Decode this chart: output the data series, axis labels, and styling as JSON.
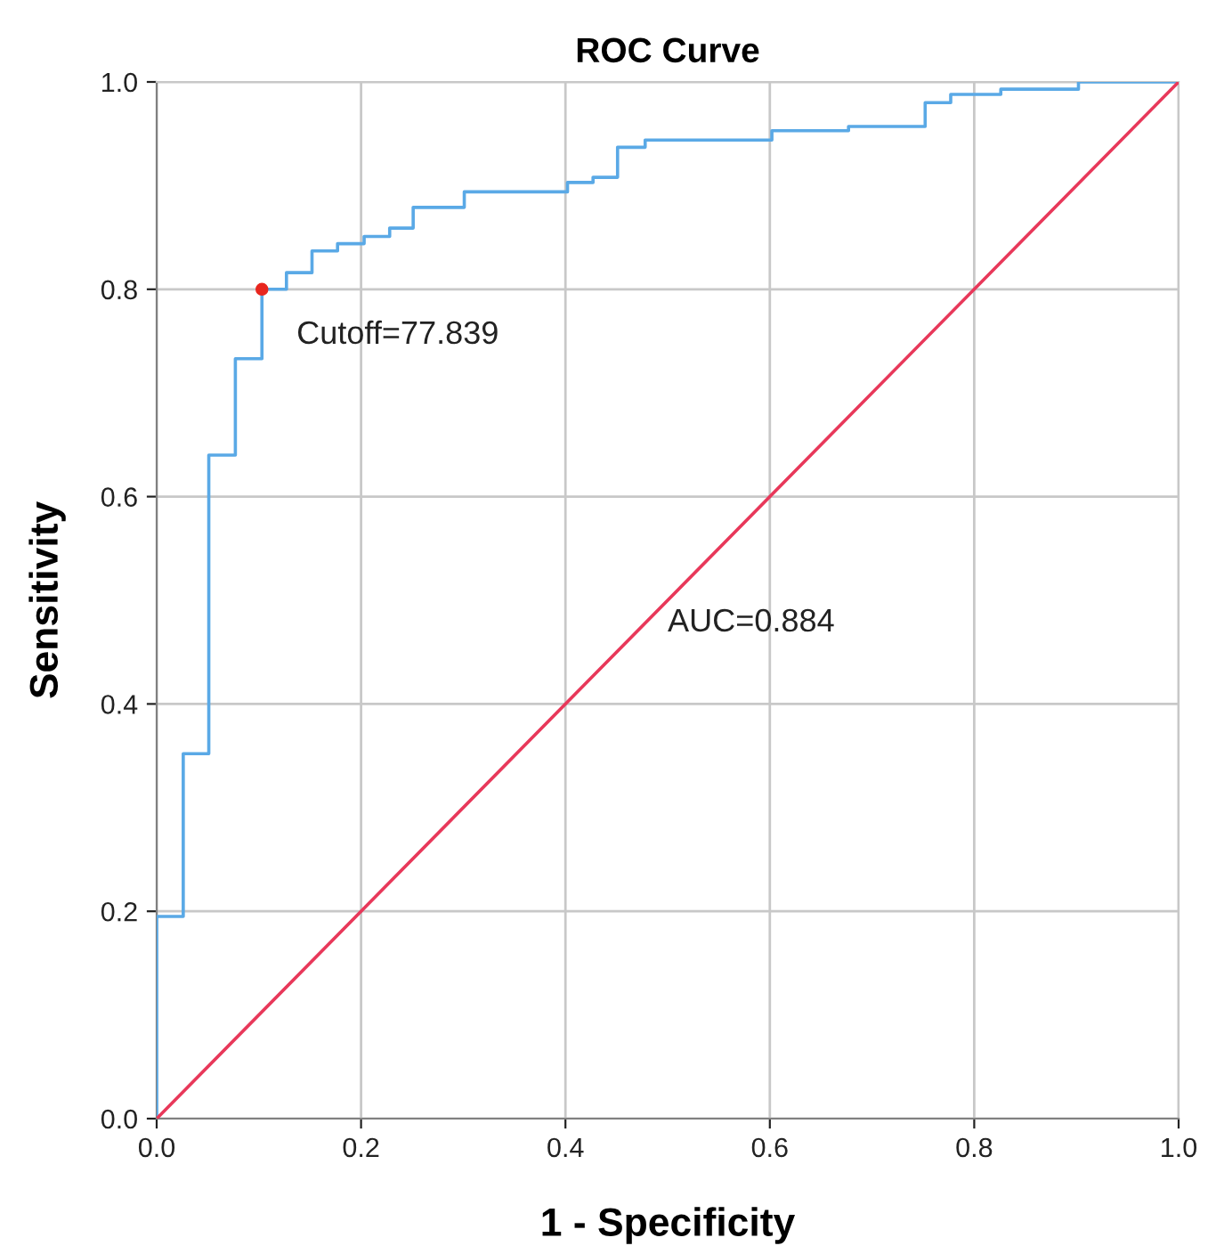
{
  "chart_data": {
    "type": "step",
    "title": "ROC Curve",
    "xlabel": "1 - Specificity",
    "ylabel": "Sensitivity",
    "xlim": [
      0,
      1
    ],
    "ylim": [
      0,
      1
    ],
    "xticks": [
      {
        "value": 0,
        "label": "0.0"
      },
      {
        "value": 0.2,
        "label": "0.2"
      },
      {
        "value": 0.4,
        "label": "0.4"
      },
      {
        "value": 0.6,
        "label": "0.6"
      },
      {
        "value": 0.8,
        "label": "0.8"
      },
      {
        "value": 1,
        "label": "1.0"
      }
    ],
    "yticks": [
      {
        "value": 0,
        "label": "0.0"
      },
      {
        "value": 0.2,
        "label": "0.2"
      },
      {
        "value": 0.4,
        "label": "0.4"
      },
      {
        "value": 0.6,
        "label": "0.6"
      },
      {
        "value": 0.8,
        "label": "0.8"
      },
      {
        "value": 1,
        "label": "1.0"
      }
    ],
    "grid": true,
    "series": [
      {
        "color": "#5aa9e6",
        "x": [
          0,
          0,
          0.026,
          0.051,
          0.077,
          0.103,
          0.127,
          0.152,
          0.177,
          0.203,
          0.228,
          0.251,
          0.301,
          0.402,
          0.427,
          0.451,
          0.478,
          0.602,
          0.677,
          0.752,
          0.777,
          0.826,
          0.902,
          1.0
        ],
        "values": [
          0,
          0.195,
          0.352,
          0.64,
          0.733,
          0.8,
          0.816,
          0.837,
          0.844,
          0.851,
          0.859,
          0.879,
          0.894,
          0.903,
          0.908,
          0.937,
          0.944,
          0.953,
          0.957,
          0.98,
          0.988,
          0.993,
          1.0,
          1.0
        ]
      },
      {
        "type": "line",
        "color": "#e8385a",
        "x": [
          0,
          1
        ],
        "values": [
          0,
          1
        ]
      },
      {
        "type": "scatter",
        "color": "#e8261e",
        "x": [
          0.103
        ],
        "values": [
          0.8
        ]
      }
    ],
    "annotations": [
      {
        "text": "Cutoff=77.839",
        "x": 0.103,
        "y": 0.8
      },
      "AUC=0.884"
    ]
  }
}
